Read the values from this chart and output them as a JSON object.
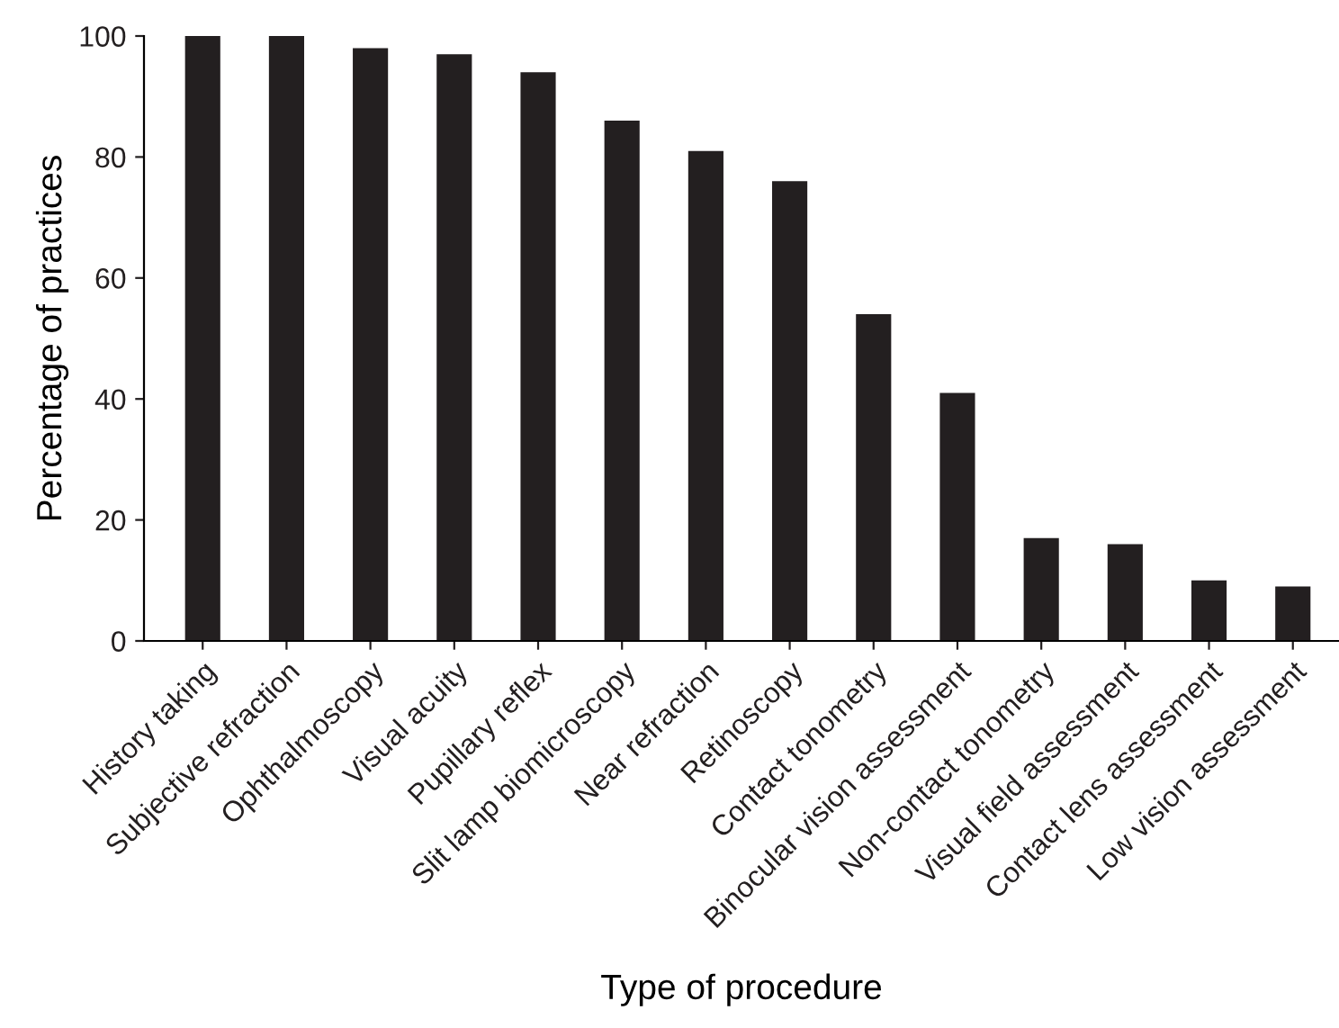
{
  "chart_data": {
    "type": "bar",
    "xlabel": "Type of procedure",
    "ylabel": "Percentage of practices",
    "categories": [
      "History taking",
      "Subjective refraction",
      "Ophthalmoscopy",
      "Visual acuity",
      "Pupillary reflex",
      "Slit lamp biomicroscopy",
      "Near refraction",
      "Retinoscopy",
      "Contact tonometry",
      "Binocular vision assessment",
      "Non-contact tonometry",
      "Visual field assessment",
      "Contact lens assessment",
      "Low vision assessment"
    ],
    "values": [
      100,
      100,
      98,
      97,
      94,
      86,
      81,
      76,
      54,
      41,
      17,
      16,
      10,
      9
    ],
    "color": "#231f20",
    "ylim": [
      0,
      100
    ],
    "yticks": [
      0,
      20,
      40,
      60,
      80,
      100
    ],
    "grid": false
  }
}
